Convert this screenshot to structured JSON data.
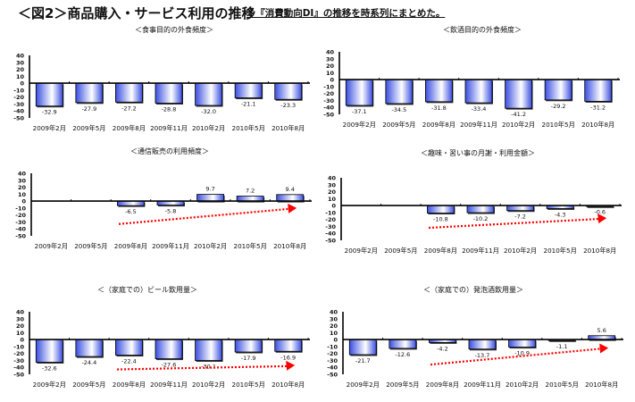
{
  "header": {
    "title": "＜図2＞商品購入・サービス利用の推移",
    "note": "※『消費動向DI』の推移を時系列にまとめた。"
  },
  "colors": {
    "bar": "#3a4fe0",
    "bar_highlight": "#ffffff",
    "trend_arrow": "#ff0000"
  },
  "chart_data": [
    {
      "type": "bar",
      "title": "＜食事目的の外食頻度＞",
      "categories": [
        "2009年2月",
        "2009年5月",
        "2009年8月",
        "2009年11月",
        "2010年2月",
        "2010年5月",
        "2010年8月"
      ],
      "values": [
        -32.9,
        -27.9,
        -27.2,
        -28.8,
        -32.0,
        -21.1,
        -23.3
      ],
      "labels": [
        "-32.9",
        "-27.9",
        "-27.2",
        "-28.8",
        "-32.0",
        "-21.1",
        "-23.3"
      ],
      "ylim": [
        -50,
        40
      ],
      "yticks": [
        40,
        30,
        20,
        10,
        0,
        -10,
        -20,
        -30,
        -40,
        -50
      ],
      "trend_arrow": false,
      "grid": false
    },
    {
      "type": "bar",
      "title": "＜飲酒目的の外食頻度＞",
      "categories": [
        "2009年2月",
        "2009年5月",
        "2009年8月",
        "2009年11月",
        "2010年2月",
        "2010年5月",
        "2010年8月"
      ],
      "values": [
        -37.1,
        -34.5,
        -31.8,
        -33.4,
        -41.2,
        -29.2,
        -31.2
      ],
      "labels": [
        "-37.1",
        "-34.5",
        "-31.8",
        "-33.4",
        "-41.2",
        "-29.2",
        "-31.2"
      ],
      "ylim": [
        -50,
        40
      ],
      "yticks": [
        40,
        30,
        20,
        10,
        0,
        -10,
        -20,
        -30,
        -40,
        -50
      ],
      "trend_arrow": false,
      "grid": false
    },
    {
      "type": "bar",
      "title": "＜通信販売の利用頻度＞",
      "categories": [
        "2009年2月",
        "2009年5月",
        "2009年8月",
        "2009年11月",
        "2010年2月",
        "2010年5月",
        "2010年8月"
      ],
      "values": [
        null,
        null,
        -6.5,
        -5.8,
        9.7,
        7.2,
        9.4
      ],
      "labels": [
        "",
        "",
        "-6.5",
        "-5.8",
        "9.7",
        "7.2",
        "9.4"
      ],
      "ylim": [
        -50,
        40
      ],
      "yticks": [
        40,
        30,
        20,
        10,
        0,
        -10,
        -20,
        -30,
        -40,
        -50
      ],
      "trend_arrow": true,
      "grid": false
    },
    {
      "type": "bar",
      "title": "＜趣味・習い事の月謝・利用金額＞",
      "categories": [
        "2009年2月",
        "2009年5月",
        "2009年8月",
        "2009年11月",
        "2010年2月",
        "2010年5月",
        "2010年8月"
      ],
      "values": [
        null,
        null,
        -10.8,
        -10.2,
        -7.2,
        -4.3,
        -0.6
      ],
      "labels": [
        "",
        "",
        "-10.8",
        "-10.2",
        "-7.2",
        "-4.3",
        "-0.6"
      ],
      "ylim": [
        -50,
        40
      ],
      "yticks": [
        40,
        30,
        20,
        10,
        0,
        -10,
        -20,
        -30,
        -40,
        -50
      ],
      "trend_arrow": true,
      "grid": false
    },
    {
      "type": "bar",
      "title": "＜（家庭での）ビール飲用量＞",
      "categories": [
        "2009年2月",
        "2009年5月",
        "2009年8月",
        "2009年11月",
        "2010年2月",
        "2010年5月",
        "2010年8月"
      ],
      "values": [
        -32.6,
        -24.4,
        -22.4,
        -27.6,
        -30.1,
        -17.9,
        -16.9
      ],
      "labels": [
        "-32.6",
        "-24.4",
        "-22.4",
        "-27.6",
        "-30.1",
        "-17.9",
        "-16.9"
      ],
      "ylim": [
        -50,
        40
      ],
      "yticks": [
        40,
        30,
        20,
        10,
        0,
        -10,
        -20,
        -30,
        -40,
        -50
      ],
      "trend_arrow": true,
      "grid": false
    },
    {
      "type": "bar",
      "title": "＜（家庭での）発泡酒飲用量＞",
      "categories": [
        "2009年2月",
        "2009年5月",
        "2009年8月",
        "2009年11月",
        "2010年2月",
        "2010年5月",
        "2010年8月"
      ],
      "values": [
        -21.7,
        -12.6,
        -4.2,
        -13.7,
        -10.9,
        -1.1,
        5.6
      ],
      "labels": [
        "-21.7",
        "-12.6",
        "-4.2",
        "-13.7",
        "-10.9",
        "-1.1",
        "5.6"
      ],
      "ylim": [
        -50,
        40
      ],
      "yticks": [
        40,
        30,
        20,
        10,
        0,
        -10,
        -20,
        -30,
        -40,
        -50
      ],
      "trend_arrow": true,
      "grid": false
    }
  ]
}
